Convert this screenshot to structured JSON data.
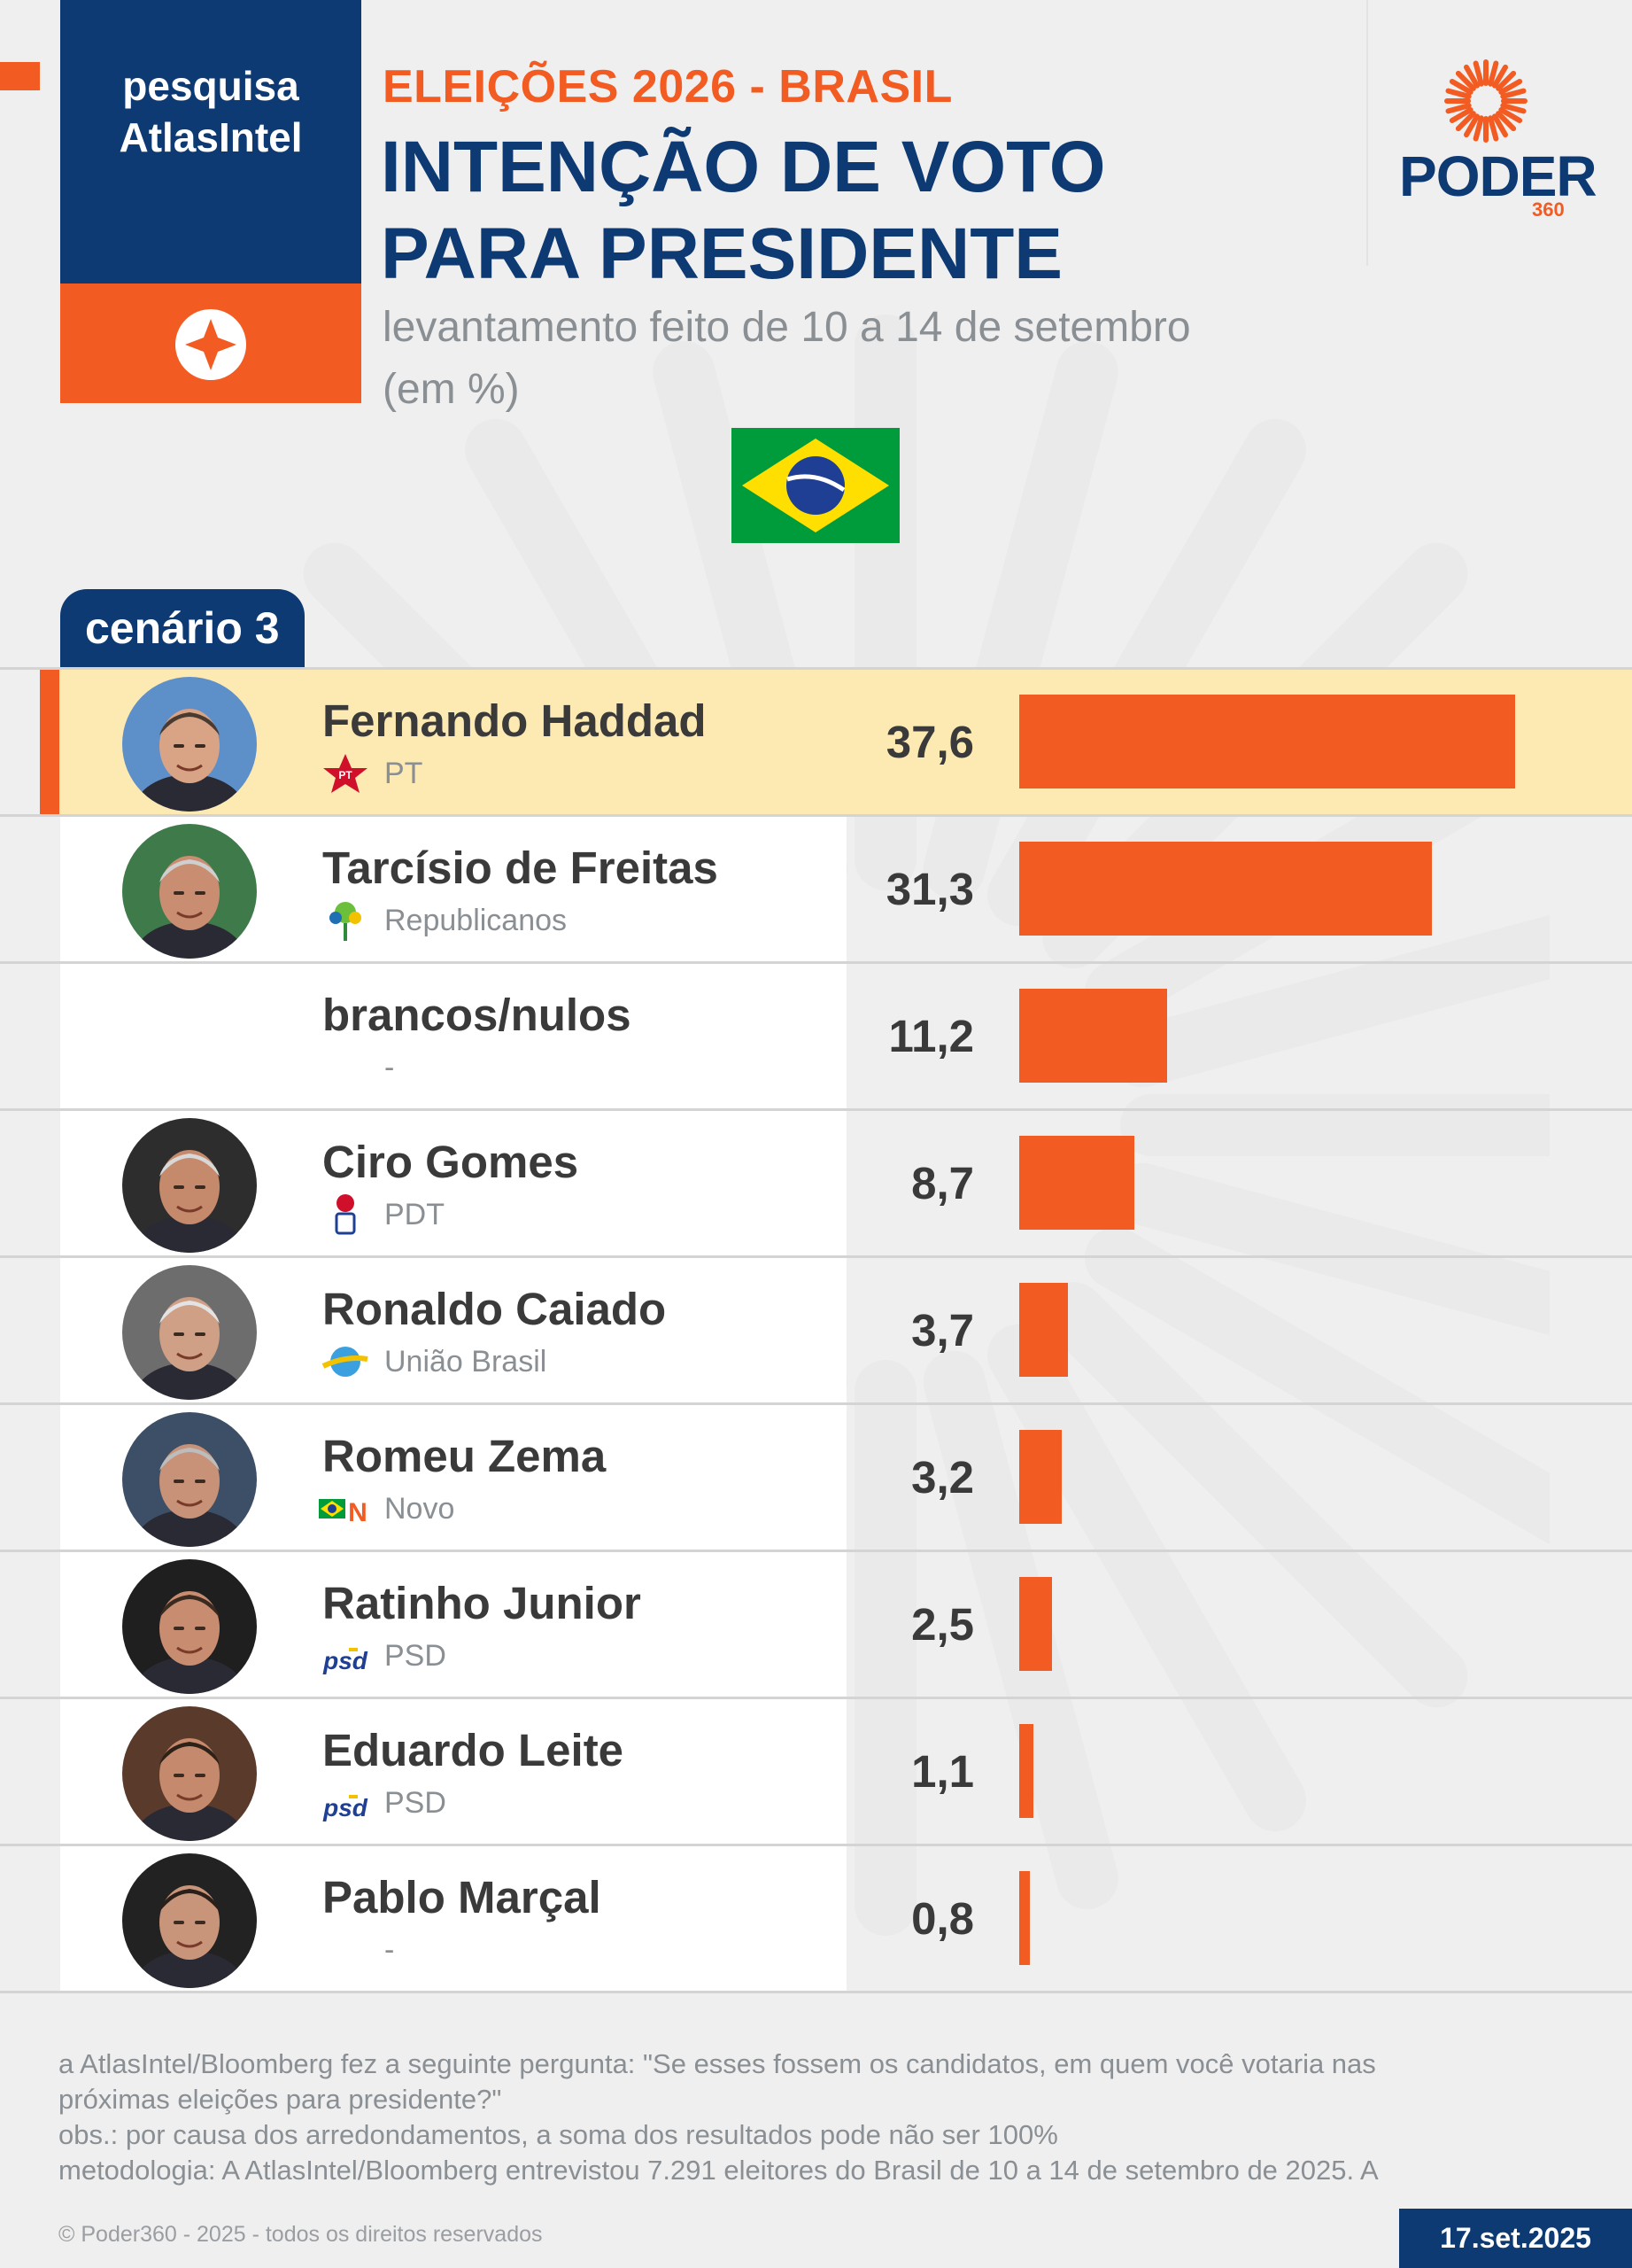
{
  "header": {
    "brand_line1": "pesquisa",
    "brand_line2": "AtlasIntel",
    "kicker": "ELEIÇÕES 2026 - BRASIL",
    "title_line1": "INTENÇÃO DE VOTO",
    "title_line2": "PARA PRESIDENTE",
    "subtitle_line1": "levantamento feito de 10 a 14 de setembro",
    "subtitle_line2": "(em %)",
    "publisher": "PODER",
    "publisher_sub": "360"
  },
  "scenario_label": "cenário 3",
  "chart_data": {
    "type": "bar",
    "orientation": "horizontal",
    "categories": [
      "Fernando Haddad",
      "Tarcísio de Freitas",
      "brancos/nulos",
      "Ciro Gomes",
      "Ronaldo Caiado",
      "Romeu Zema",
      "Ratinho Junior",
      "Eduardo Leite",
      "Pablo Marçal"
    ],
    "values": [
      37.6,
      31.3,
      11.2,
      8.7,
      3.7,
      3.2,
      2.5,
      1.1,
      0.8
    ],
    "value_labels": [
      "37,6",
      "31,3",
      "11,2",
      "8,7",
      "3,7",
      "3,2",
      "2,5",
      "1,1",
      "0,8"
    ],
    "parties": [
      "PT",
      "Republicanos",
      "-",
      "PDT",
      "União Brasil",
      "Novo",
      "PSD",
      "PSD",
      "-"
    ],
    "highlight_index": 0,
    "bar_color": "#f25c22",
    "xlim": [
      0,
      37.6
    ]
  },
  "footnotes": {
    "question": "a AtlasIntel/Bloomberg fez a seguinte pergunta: \"Se esses fossem os candidatos, em quem você votaria nas",
    "question_cont": "próximas eleições para presidente?\"",
    "obs": "obs.: por causa dos arredondamentos, a soma dos resultados pode não ser 100%",
    "methodology": "metodologia: A AtlasIntel/Bloomberg entrevistou 7.291 eleitores do Brasil de 10 a 14 de setembro de 2025. A"
  },
  "copyright": "© Poder360 - 2025 - todos os direitos reservados",
  "date": "17.set.2025",
  "colors": {
    "navy": "#0d3a73",
    "orange": "#f25c22",
    "highlight": "#fde9b2"
  }
}
